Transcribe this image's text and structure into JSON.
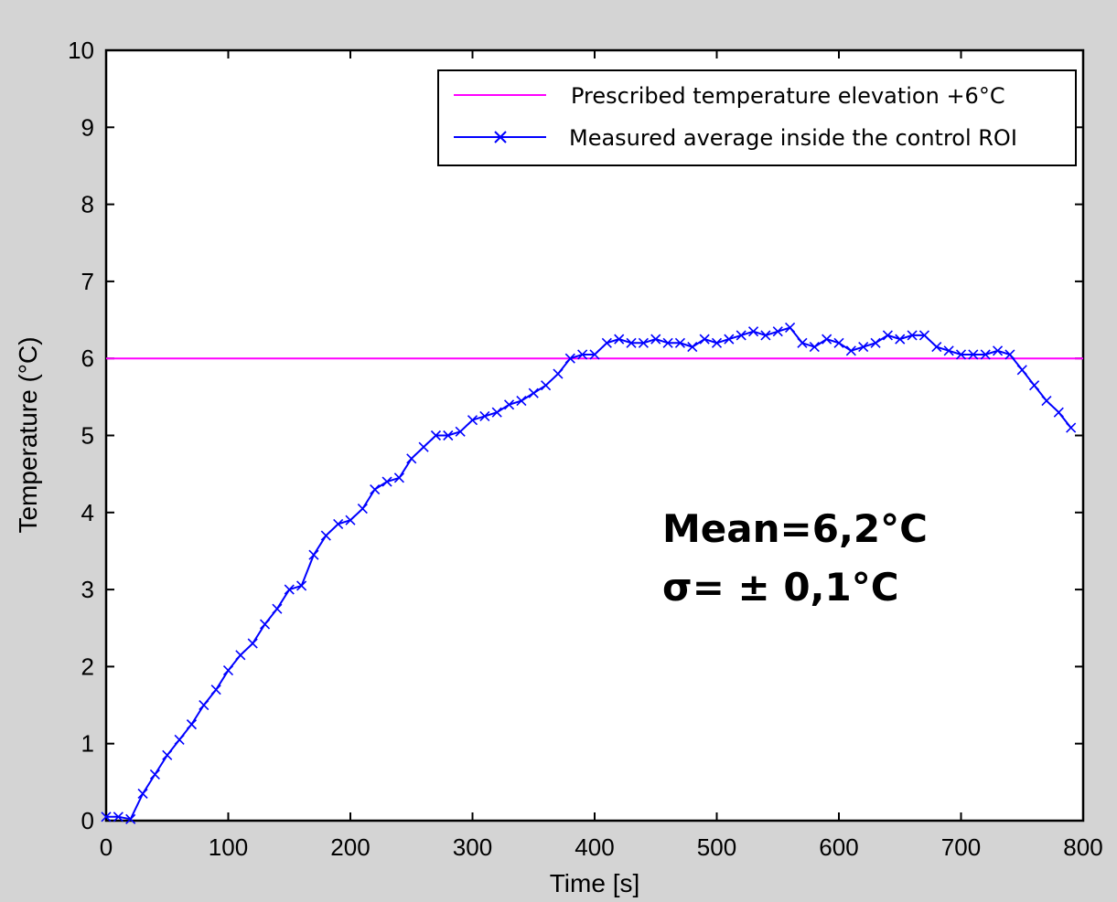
{
  "chart_data": {
    "type": "line",
    "title": "",
    "xlabel": "Time [s]",
    "ylabel": "Temperature (°C)",
    "xlim": [
      0,
      800
    ],
    "ylim": [
      0,
      10
    ],
    "x_ticks": [
      "0",
      "100",
      "200",
      "300",
      "400",
      "500",
      "600",
      "700",
      "800"
    ],
    "y_ticks": [
      "0",
      "1",
      "2",
      "3",
      "4",
      "5",
      "6",
      "7",
      "8",
      "9",
      "10"
    ],
    "grid": false,
    "legend_position": "top-right",
    "series": [
      {
        "name": "Prescribed temperature elevation +6°C",
        "color": "#ff00ff",
        "marker": "none",
        "x": [
          0,
          800
        ],
        "y": [
          6,
          6
        ]
      },
      {
        "name": "Measured average inside the control ROI",
        "color": "#0000ff",
        "marker": "x",
        "x": [
          0,
          10,
          20,
          30,
          40,
          50,
          60,
          70,
          80,
          90,
          100,
          110,
          120,
          130,
          140,
          150,
          160,
          170,
          180,
          190,
          200,
          210,
          220,
          230,
          240,
          250,
          260,
          270,
          280,
          290,
          300,
          310,
          320,
          330,
          340,
          350,
          360,
          370,
          380,
          390,
          400,
          410,
          420,
          430,
          440,
          450,
          460,
          470,
          480,
          490,
          500,
          510,
          520,
          530,
          540,
          550,
          560,
          570,
          580,
          590,
          600,
          610,
          620,
          630,
          640,
          650,
          660,
          670,
          680,
          690,
          700,
          710,
          720,
          730,
          740,
          750,
          760,
          770,
          780,
          790
        ],
        "y": [
          0.05,
          0.05,
          0.02,
          0.35,
          0.6,
          0.85,
          1.05,
          1.25,
          1.5,
          1.7,
          1.95,
          2.15,
          2.3,
          2.55,
          2.75,
          3.0,
          3.05,
          3.45,
          3.7,
          3.85,
          3.9,
          4.05,
          4.3,
          4.4,
          4.45,
          4.7,
          4.85,
          5.0,
          5.0,
          5.05,
          5.2,
          5.25,
          5.3,
          5.4,
          5.45,
          5.55,
          5.65,
          5.8,
          6.0,
          6.05,
          6.05,
          6.2,
          6.25,
          6.2,
          6.2,
          6.25,
          6.2,
          6.2,
          6.15,
          6.25,
          6.2,
          6.25,
          6.3,
          6.35,
          6.3,
          6.35,
          6.4,
          6.2,
          6.15,
          6.25,
          6.2,
          6.1,
          6.15,
          6.2,
          6.3,
          6.25,
          6.3,
          6.3,
          6.15,
          6.1,
          6.05,
          6.05,
          6.05,
          6.1,
          6.05,
          5.85,
          5.65,
          5.45,
          5.3,
          5.1
        ]
      }
    ],
    "annotations": [
      "Mean=6,2°C",
      "σ= ± 0,1°C"
    ]
  }
}
